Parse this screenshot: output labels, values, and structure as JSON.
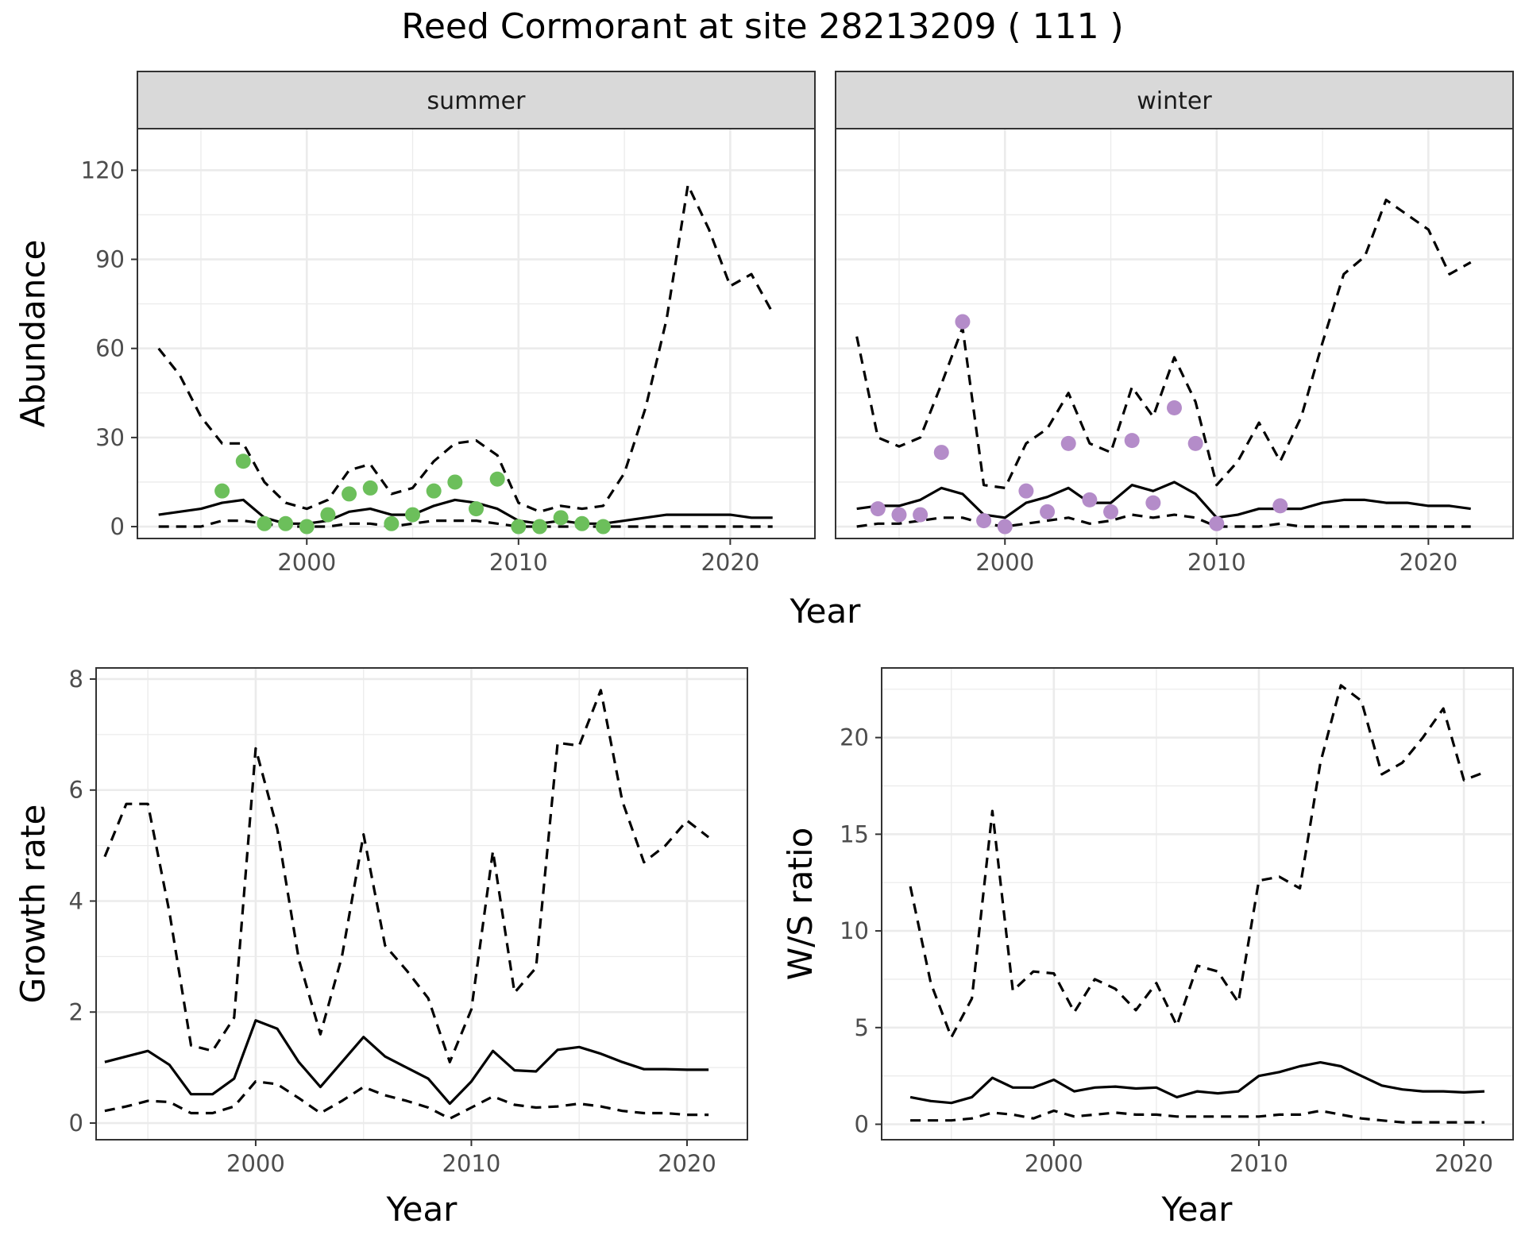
{
  "title": "Reed Cormorant at site 28213209 ( 111 )",
  "colors": {
    "summer": "#6cbf5b",
    "winter": "#b48cc9"
  },
  "chart_data": [
    {
      "id": "abundance",
      "type": "line",
      "ylabel": "Abundance",
      "xlabel": "Year",
      "xlim": [
        1992,
        2024
      ],
      "ylim": [
        -4,
        134
      ],
      "xticks": [
        2000,
        2010,
        2020
      ],
      "yticks": [
        0,
        30,
        60,
        90,
        120
      ],
      "facets": [
        {
          "name": "summer",
          "strip": "summer",
          "x": [
            1993,
            1994,
            1995,
            1996,
            1997,
            1998,
            1999,
            2000,
            2001,
            2002,
            2003,
            2004,
            2005,
            2006,
            2007,
            2008,
            2009,
            2010,
            2011,
            2012,
            2013,
            2014,
            2015,
            2016,
            2017,
            2018,
            2019,
            2020,
            2021,
            2022
          ],
          "estimate": [
            4,
            5,
            6,
            8,
            9,
            3,
            1,
            1,
            2,
            5,
            6,
            4,
            4,
            7,
            9,
            8,
            6,
            2,
            1,
            2,
            1,
            1,
            2,
            3,
            4,
            4,
            4,
            4,
            3,
            3
          ],
          "upper": [
            60,
            51,
            37,
            28,
            28,
            15,
            8,
            6,
            9,
            19,
            21,
            11,
            13,
            22,
            28,
            29,
            24,
            8,
            5,
            7,
            6,
            7,
            18,
            40,
            70,
            115,
            100,
            81,
            85,
            72
          ],
          "lower": [
            0,
            0,
            0,
            2,
            2,
            1,
            0,
            0,
            0,
            1,
            1,
            0,
            1,
            2,
            2,
            2,
            1,
            0,
            0,
            0,
            0,
            0,
            0,
            0,
            0,
            0,
            0,
            0,
            0,
            0
          ],
          "points": [
            [
              1996,
              12
            ],
            [
              1997,
              22
            ],
            [
              1998,
              1
            ],
            [
              1999,
              1
            ],
            [
              2000,
              0
            ],
            [
              2001,
              4
            ],
            [
              2002,
              11
            ],
            [
              2003,
              13
            ],
            [
              2004,
              1
            ],
            [
              2005,
              4
            ],
            [
              2006,
              12
            ],
            [
              2007,
              15
            ],
            [
              2008,
              6
            ],
            [
              2009,
              16
            ],
            [
              2010,
              0
            ],
            [
              2011,
              0
            ],
            [
              2012,
              3
            ],
            [
              2013,
              1
            ],
            [
              2014,
              0
            ]
          ],
          "point_color": "#6cbf5b"
        },
        {
          "name": "winter",
          "strip": "winter",
          "x": [
            1993,
            1994,
            1995,
            1996,
            1997,
            1998,
            1999,
            2000,
            2001,
            2002,
            2003,
            2004,
            2005,
            2006,
            2007,
            2008,
            2009,
            2010,
            2011,
            2012,
            2013,
            2014,
            2015,
            2016,
            2017,
            2018,
            2019,
            2020,
            2021,
            2022
          ],
          "estimate": [
            6,
            7,
            7,
            9,
            13,
            11,
            4,
            3,
            8,
            10,
            13,
            8,
            8,
            14,
            12,
            15,
            11,
            3,
            4,
            6,
            6,
            6,
            8,
            9,
            9,
            8,
            8,
            7,
            7,
            6
          ],
          "upper": [
            64,
            30,
            27,
            30,
            48,
            67,
            14,
            13,
            28,
            33,
            45,
            28,
            25,
            47,
            37,
            57,
            42,
            14,
            22,
            35,
            22,
            37,
            62,
            85,
            91,
            110,
            105,
            100,
            85,
            89
          ],
          "lower": [
            0,
            1,
            1,
            2,
            3,
            3,
            1,
            0,
            1,
            2,
            3,
            1,
            2,
            4,
            3,
            4,
            3,
            0,
            0,
            0,
            1,
            0,
            0,
            0,
            0,
            0,
            0,
            0,
            0,
            0
          ],
          "points": [
            [
              1994,
              6
            ],
            [
              1995,
              4
            ],
            [
              1996,
              4
            ],
            [
              1997,
              25
            ],
            [
              1998,
              69
            ],
            [
              1999,
              2
            ],
            [
              2000,
              0
            ],
            [
              2001,
              12
            ],
            [
              2002,
              5
            ],
            [
              2003,
              28
            ],
            [
              2004,
              9
            ],
            [
              2005,
              5
            ],
            [
              2006,
              29
            ],
            [
              2007,
              8
            ],
            [
              2008,
              40
            ],
            [
              2009,
              28
            ],
            [
              2010,
              1
            ],
            [
              2013,
              7
            ]
          ],
          "point_color": "#b48cc9"
        }
      ]
    },
    {
      "id": "growth",
      "type": "line",
      "ylabel": "Growth rate",
      "xlabel": "Year",
      "xlim": [
        1992.6,
        2022.8
      ],
      "ylim": [
        -0.3,
        8.2
      ],
      "xticks": [
        2000,
        2010,
        2020
      ],
      "yticks": [
        0,
        2,
        4,
        6,
        8
      ],
      "x": [
        1993,
        1994,
        1995,
        1996,
        1997,
        1998,
        1999,
        2000,
        2001,
        2002,
        2003,
        2004,
        2005,
        2006,
        2007,
        2008,
        2009,
        2010,
        2011,
        2012,
        2013,
        2014,
        2015,
        2016,
        2017,
        2018,
        2019,
        2020,
        2021
      ],
      "estimate": [
        1.1,
        1.2,
        1.3,
        1.05,
        0.52,
        0.52,
        0.8,
        1.85,
        1.7,
        1.1,
        0.65,
        1.1,
        1.55,
        1.2,
        1.0,
        0.8,
        0.35,
        0.75,
        1.3,
        0.95,
        0.93,
        1.32,
        1.37,
        1.25,
        1.1,
        0.97,
        0.97,
        0.96,
        0.96
      ],
      "upper": [
        4.8,
        5.75,
        5.75,
        3.8,
        1.4,
        1.3,
        1.9,
        6.75,
        5.3,
        2.95,
        1.6,
        3.0,
        5.2,
        3.2,
        2.75,
        2.25,
        1.1,
        2.05,
        4.9,
        2.35,
        2.8,
        6.85,
        6.8,
        7.8,
        5.8,
        4.7,
        5.0,
        5.45,
        5.15
      ],
      "lower": [
        0.22,
        0.3,
        0.4,
        0.38,
        0.18,
        0.18,
        0.3,
        0.75,
        0.7,
        0.45,
        0.18,
        0.4,
        0.65,
        0.5,
        0.4,
        0.28,
        0.08,
        0.28,
        0.48,
        0.33,
        0.28,
        0.3,
        0.35,
        0.3,
        0.22,
        0.18,
        0.18,
        0.15,
        0.15
      ]
    },
    {
      "id": "ws_ratio",
      "type": "line",
      "ylabel": "W/S ratio",
      "xlabel": "Year",
      "xlim": [
        1991.6,
        2022.4
      ],
      "ylim": [
        -0.8,
        23.6
      ],
      "xticks": [
        2000,
        2010,
        2020
      ],
      "yticks": [
        0,
        5,
        10,
        15,
        20
      ],
      "x": [
        1993,
        1994,
        1995,
        1996,
        1997,
        1998,
        1999,
        2000,
        2001,
        2002,
        2003,
        2004,
        2005,
        2006,
        2007,
        2008,
        2009,
        2010,
        2011,
        2012,
        2013,
        2014,
        2015,
        2016,
        2017,
        2018,
        2019,
        2020,
        2021
      ],
      "estimate": [
        1.4,
        1.2,
        1.1,
        1.4,
        2.4,
        1.9,
        1.9,
        2.3,
        1.7,
        1.9,
        1.95,
        1.85,
        1.9,
        1.4,
        1.7,
        1.6,
        1.7,
        2.5,
        2.7,
        3.0,
        3.2,
        3.0,
        2.5,
        2.0,
        1.8,
        1.7,
        1.7,
        1.65,
        1.7
      ],
      "upper": [
        12.3,
        7.3,
        4.5,
        6.5,
        16.2,
        6.9,
        7.9,
        7.8,
        5.8,
        7.5,
        7.0,
        5.9,
        7.3,
        5.1,
        8.2,
        7.9,
        6.3,
        12.6,
        12.8,
        12.2,
        18.7,
        22.7,
        21.9,
        18.1,
        18.7,
        20.0,
        21.5,
        17.8,
        18.2
      ],
      "lower": [
        0.2,
        0.2,
        0.2,
        0.3,
        0.6,
        0.5,
        0.3,
        0.7,
        0.4,
        0.5,
        0.6,
        0.5,
        0.5,
        0.4,
        0.4,
        0.4,
        0.4,
        0.4,
        0.5,
        0.5,
        0.7,
        0.5,
        0.3,
        0.2,
        0.1,
        0.1,
        0.1,
        0.1,
        0.1
      ]
    }
  ]
}
